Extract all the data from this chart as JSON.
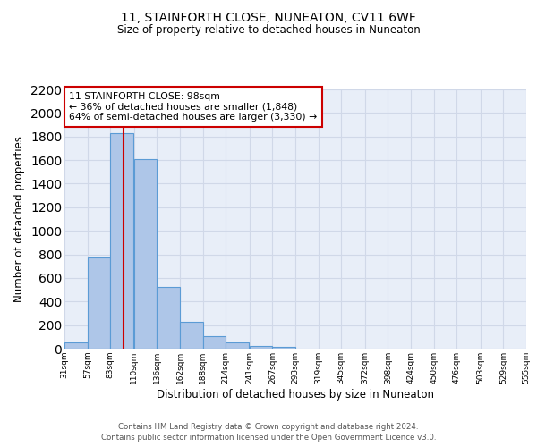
{
  "title": "11, STAINFORTH CLOSE, NUNEATON, CV11 6WF",
  "subtitle": "Size of property relative to detached houses in Nuneaton",
  "xlabel": "Distribution of detached houses by size in Nuneaton",
  "ylabel": "Number of detached properties",
  "bar_left_edges": [
    31,
    57,
    83,
    110,
    136,
    162,
    188,
    214,
    241,
    267,
    293,
    319,
    345,
    372,
    398,
    424,
    450,
    476,
    503,
    529
  ],
  "bar_heights": [
    50,
    775,
    1830,
    1610,
    520,
    230,
    105,
    50,
    25,
    15,
    0,
    0,
    0,
    0,
    0,
    0,
    0,
    0,
    0,
    0
  ],
  "bin_width": 26,
  "bar_color": "#aec6e8",
  "bar_edge_color": "#5b9bd5",
  "property_line_x": 98,
  "property_line_color": "#cc0000",
  "ylim": [
    0,
    2200
  ],
  "yticks": [
    0,
    200,
    400,
    600,
    800,
    1000,
    1200,
    1400,
    1600,
    1800,
    2000,
    2200
  ],
  "xtick_labels": [
    "31sqm",
    "57sqm",
    "83sqm",
    "110sqm",
    "136sqm",
    "162sqm",
    "188sqm",
    "214sqm",
    "241sqm",
    "267sqm",
    "293sqm",
    "319sqm",
    "345sqm",
    "372sqm",
    "398sqm",
    "424sqm",
    "450sqm",
    "476sqm",
    "503sqm",
    "529sqm",
    "555sqm"
  ],
  "annotation_text": "11 STAINFORTH CLOSE: 98sqm\n← 36% of detached houses are smaller (1,848)\n64% of semi-detached houses are larger (3,330) →",
  "annotation_box_color": "#ffffff",
  "annotation_box_edge_color": "#cc0000",
  "footer_line1": "Contains HM Land Registry data © Crown copyright and database right 2024.",
  "footer_line2": "Contains public sector information licensed under the Open Government Licence v3.0.",
  "grid_color": "#d0d8e8",
  "background_color": "#e8eef8",
  "fig_bg_color": "#ffffff",
  "xlim_left": 31,
  "xlim_right": 555
}
